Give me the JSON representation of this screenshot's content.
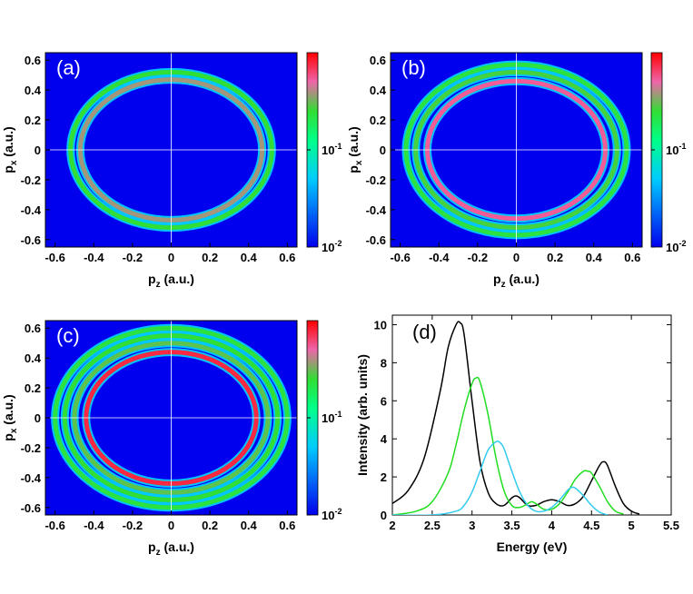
{
  "chart_data": [
    {
      "id": "a",
      "type": "heatmap",
      "panel_label": "(a)",
      "xlabel_main": "p",
      "xlabel_sub": "z",
      "xlabel_suffix": " (a.u.)",
      "ylabel_main": "p",
      "ylabel_sub": "x",
      "ylabel_suffix": " (a.u.)",
      "xlim": [
        -0.65,
        0.65
      ],
      "ylim": [
        -0.65,
        0.65
      ],
      "x_ticks": [
        "-0.6",
        "-0.4",
        "-0.2",
        "0",
        "0.2",
        "0.4",
        "0.6"
      ],
      "y_ticks": [
        "0.6",
        "0.4",
        "0.2",
        "0",
        "-0.2",
        "-0.4",
        "-0.6"
      ],
      "colorbar": {
        "scale": "log",
        "range": [
          0.01,
          1
        ],
        "ticks": [
          "10",
          "10"
        ],
        "tick_exponents": [
          "-1",
          "-2"
        ]
      },
      "rings": [
        {
          "rx": 0.47,
          "ry": 0.47,
          "intensity": 0.5
        },
        {
          "rx": 0.52,
          "ry": 0.52,
          "intensity": 0.25
        }
      ]
    },
    {
      "id": "b",
      "type": "heatmap",
      "panel_label": "(b)",
      "xlabel_main": "p",
      "xlabel_sub": "z",
      "xlabel_suffix": " (a.u.)",
      "ylabel_main": "p",
      "ylabel_sub": "x",
      "ylabel_suffix": " (a.u.)",
      "xlim": [
        -0.65,
        0.65
      ],
      "ylim": [
        -0.65,
        0.65
      ],
      "x_ticks": [
        "-0.6",
        "-0.4",
        "-0.2",
        "0",
        "0.2",
        "0.4",
        "0.6"
      ],
      "y_ticks": [
        "0.6",
        "0.4",
        "0.2",
        "0",
        "-0.2",
        "-0.4",
        "-0.6"
      ],
      "colorbar": {
        "scale": "log",
        "range": [
          0.01,
          1
        ],
        "ticks": [
          "10",
          "10"
        ],
        "tick_exponents": [
          "-1",
          "-2"
        ]
      },
      "rings": [
        {
          "rx": 0.46,
          "ry": 0.46,
          "intensity": 0.7
        },
        {
          "rx": 0.52,
          "ry": 0.52,
          "intensity": 0.3
        },
        {
          "rx": 0.57,
          "ry": 0.57,
          "intensity": 0.2
        }
      ]
    },
    {
      "id": "c",
      "type": "heatmap",
      "panel_label": "(c)",
      "xlabel_main": "p",
      "xlabel_sub": "z",
      "xlabel_suffix": " (a.u.)",
      "ylabel_main": "p",
      "ylabel_sub": "x",
      "ylabel_suffix": " (a.u.)",
      "xlim": [
        -0.65,
        0.65
      ],
      "ylim": [
        -0.65,
        0.65
      ],
      "x_ticks": [
        "-0.6",
        "-0.4",
        "-0.2",
        "0",
        "0.2",
        "0.4",
        "0.6"
      ],
      "y_ticks": [
        "0.6",
        "0.4",
        "0.2",
        "0",
        "-0.2",
        "-0.4",
        "-0.6"
      ],
      "colorbar": {
        "scale": "log",
        "range": [
          0.01,
          1
        ],
        "ticks": [
          "10",
          "10"
        ],
        "tick_exponents": [
          "-1",
          "-2"
        ]
      },
      "rings": [
        {
          "rx": 0.44,
          "ry": 0.44,
          "intensity": 0.9
        },
        {
          "rx": 0.5,
          "ry": 0.5,
          "intensity": 0.35
        },
        {
          "rx": 0.55,
          "ry": 0.55,
          "intensity": 0.25
        },
        {
          "rx": 0.6,
          "ry": 0.6,
          "intensity": 0.2
        }
      ]
    },
    {
      "id": "d",
      "type": "line",
      "panel_label": "(d)",
      "xlabel": "Energy (eV)",
      "ylabel": "Intensity (arb. units)",
      "xlim": [
        2,
        5.5
      ],
      "ylim": [
        0,
        10.5
      ],
      "x_ticks": [
        "2",
        "2.5",
        "3",
        "3.5",
        "4",
        "4.5",
        "5",
        "5.5"
      ],
      "y_ticks": [
        "0",
        "2",
        "4",
        "6",
        "8",
        "10"
      ],
      "series": [
        {
          "name": "black",
          "color": "#000000",
          "x": [
            2.0,
            2.2,
            2.4,
            2.6,
            2.7,
            2.8,
            2.85,
            2.9,
            3.0,
            3.1,
            3.2,
            3.3,
            3.4,
            3.5,
            3.55,
            3.6,
            3.7,
            3.8,
            3.9,
            4.0,
            4.1,
            4.2,
            4.3,
            4.4,
            4.5,
            4.6,
            4.65,
            4.7,
            4.8,
            4.9,
            5.0,
            5.1
          ],
          "y": [
            0.6,
            1.3,
            3.0,
            6.5,
            8.8,
            10.0,
            10.1,
            9.5,
            6.0,
            2.8,
            1.2,
            0.6,
            0.5,
            0.9,
            1.0,
            0.9,
            0.5,
            0.5,
            0.7,
            0.8,
            0.7,
            0.5,
            0.6,
            1.0,
            1.8,
            2.6,
            2.8,
            2.6,
            1.5,
            0.6,
            0.2,
            0.05
          ]
        },
        {
          "name": "green",
          "color": "#22dd22",
          "x": [
            2.0,
            2.3,
            2.5,
            2.7,
            2.8,
            2.9,
            3.0,
            3.05,
            3.1,
            3.2,
            3.3,
            3.4,
            3.5,
            3.6,
            3.7,
            3.75,
            3.8,
            3.9,
            4.0,
            4.1,
            4.2,
            4.3,
            4.4,
            4.45,
            4.5,
            4.6,
            4.7,
            4.8,
            4.9
          ],
          "y": [
            0.0,
            0.2,
            0.7,
            2.2,
            3.7,
            5.5,
            6.9,
            7.2,
            7.0,
            5.3,
            3.0,
            1.3,
            0.5,
            0.4,
            0.6,
            0.7,
            0.6,
            0.3,
            0.3,
            0.6,
            1.2,
            1.9,
            2.3,
            2.3,
            2.2,
            1.5,
            0.7,
            0.2,
            0.05
          ]
        },
        {
          "name": "cyan",
          "color": "#33ccee",
          "x": [
            2.0,
            2.5,
            2.8,
            2.9,
            3.0,
            3.1,
            3.2,
            3.3,
            3.35,
            3.4,
            3.5,
            3.6,
            3.7,
            3.8,
            3.9,
            4.0,
            4.1,
            4.2,
            4.25,
            4.3,
            4.4,
            4.5,
            4.6,
            4.7
          ],
          "y": [
            0.0,
            0.0,
            0.2,
            0.5,
            1.2,
            2.3,
            3.4,
            3.85,
            3.8,
            3.5,
            2.3,
            1.2,
            0.5,
            0.2,
            0.2,
            0.4,
            0.8,
            1.3,
            1.45,
            1.4,
            1.0,
            0.5,
            0.15,
            0.0
          ]
        }
      ]
    }
  ]
}
